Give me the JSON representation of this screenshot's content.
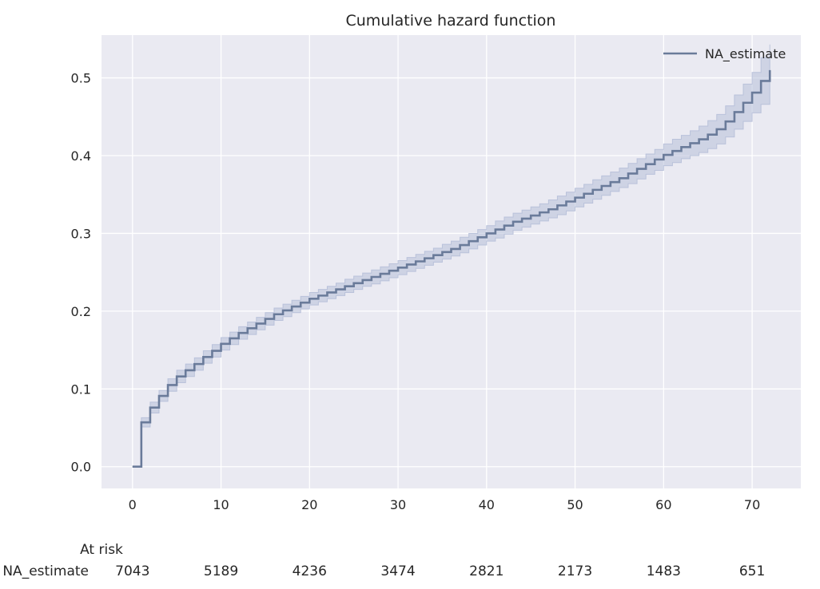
{
  "chart_data": {
    "type": "line",
    "title": "Cumulative hazard function",
    "xlabel": "",
    "ylabel": "",
    "xlim": [
      -3.5,
      75.5
    ],
    "ylim": [
      -0.028,
      0.555
    ],
    "x_ticks": [
      0,
      10,
      20,
      30,
      40,
      50,
      60,
      70
    ],
    "y_ticks": [
      0.0,
      0.1,
      0.2,
      0.3,
      0.4,
      0.5
    ],
    "x_tick_labels": [
      "0",
      "10",
      "20",
      "30",
      "40",
      "50",
      "60",
      "70"
    ],
    "y_tick_labels": [
      "0.0",
      "0.1",
      "0.2",
      "0.3",
      "0.4",
      "0.5"
    ],
    "grid": true,
    "legend": {
      "placement": "top-right",
      "entries": [
        "NA_estimate"
      ]
    },
    "series": [
      {
        "name": "NA_estimate",
        "color": "#6a7b9a",
        "band_color": "#b6bfd8",
        "step": "post",
        "x": [
          0,
          1,
          2,
          3,
          4,
          5,
          6,
          7,
          8,
          9,
          10,
          11,
          12,
          13,
          14,
          15,
          16,
          17,
          18,
          19,
          20,
          21,
          22,
          23,
          24,
          25,
          26,
          27,
          28,
          29,
          30,
          31,
          32,
          33,
          34,
          35,
          36,
          37,
          38,
          39,
          40,
          41,
          42,
          43,
          44,
          45,
          46,
          47,
          48,
          49,
          50,
          51,
          52,
          53,
          54,
          55,
          56,
          57,
          58,
          59,
          60,
          61,
          62,
          63,
          64,
          65,
          66,
          67,
          68,
          69,
          70,
          71,
          72
        ],
        "y": [
          0.0,
          0.057,
          0.076,
          0.091,
          0.105,
          0.116,
          0.124,
          0.132,
          0.141,
          0.149,
          0.158,
          0.165,
          0.172,
          0.178,
          0.184,
          0.19,
          0.196,
          0.201,
          0.206,
          0.211,
          0.216,
          0.22,
          0.224,
          0.228,
          0.232,
          0.236,
          0.24,
          0.244,
          0.248,
          0.252,
          0.256,
          0.26,
          0.264,
          0.268,
          0.272,
          0.276,
          0.28,
          0.285,
          0.29,
          0.295,
          0.3,
          0.305,
          0.31,
          0.315,
          0.319,
          0.323,
          0.327,
          0.331,
          0.336,
          0.341,
          0.346,
          0.351,
          0.356,
          0.361,
          0.366,
          0.371,
          0.377,
          0.383,
          0.389,
          0.395,
          0.401,
          0.406,
          0.411,
          0.416,
          0.421,
          0.427,
          0.434,
          0.444,
          0.456,
          0.468,
          0.481,
          0.496,
          0.51
        ],
        "ci_lower": [
          0.0,
          0.051,
          0.069,
          0.084,
          0.097,
          0.108,
          0.116,
          0.124,
          0.133,
          0.141,
          0.15,
          0.157,
          0.164,
          0.17,
          0.176,
          0.182,
          0.188,
          0.193,
          0.198,
          0.203,
          0.208,
          0.212,
          0.216,
          0.22,
          0.224,
          0.228,
          0.232,
          0.235,
          0.239,
          0.243,
          0.247,
          0.251,
          0.255,
          0.259,
          0.263,
          0.267,
          0.271,
          0.275,
          0.28,
          0.285,
          0.29,
          0.294,
          0.299,
          0.304,
          0.308,
          0.312,
          0.316,
          0.32,
          0.324,
          0.329,
          0.334,
          0.339,
          0.344,
          0.349,
          0.354,
          0.359,
          0.364,
          0.37,
          0.376,
          0.381,
          0.387,
          0.391,
          0.396,
          0.4,
          0.404,
          0.409,
          0.415,
          0.424,
          0.434,
          0.444,
          0.455,
          0.466,
          0.477
        ],
        "ci_upper": [
          0.0,
          0.063,
          0.083,
          0.098,
          0.113,
          0.124,
          0.132,
          0.14,
          0.149,
          0.157,
          0.166,
          0.173,
          0.18,
          0.186,
          0.192,
          0.198,
          0.204,
          0.209,
          0.214,
          0.219,
          0.224,
          0.228,
          0.232,
          0.236,
          0.241,
          0.245,
          0.249,
          0.253,
          0.257,
          0.261,
          0.265,
          0.269,
          0.273,
          0.277,
          0.281,
          0.286,
          0.29,
          0.295,
          0.3,
          0.305,
          0.31,
          0.316,
          0.321,
          0.326,
          0.33,
          0.334,
          0.338,
          0.343,
          0.348,
          0.353,
          0.358,
          0.363,
          0.369,
          0.374,
          0.379,
          0.384,
          0.39,
          0.396,
          0.402,
          0.408,
          0.415,
          0.421,
          0.426,
          0.432,
          0.438,
          0.445,
          0.453,
          0.464,
          0.478,
          0.492,
          0.507,
          0.526,
          0.543
        ]
      }
    ],
    "at_risk": {
      "header": "At risk",
      "row_label": "NA_estimate",
      "times": [
        0,
        10,
        20,
        30,
        40,
        50,
        60,
        70
      ],
      "counts": [
        "7043",
        "5189",
        "4236",
        "3474",
        "2821",
        "2173",
        "1483",
        "651"
      ]
    }
  }
}
